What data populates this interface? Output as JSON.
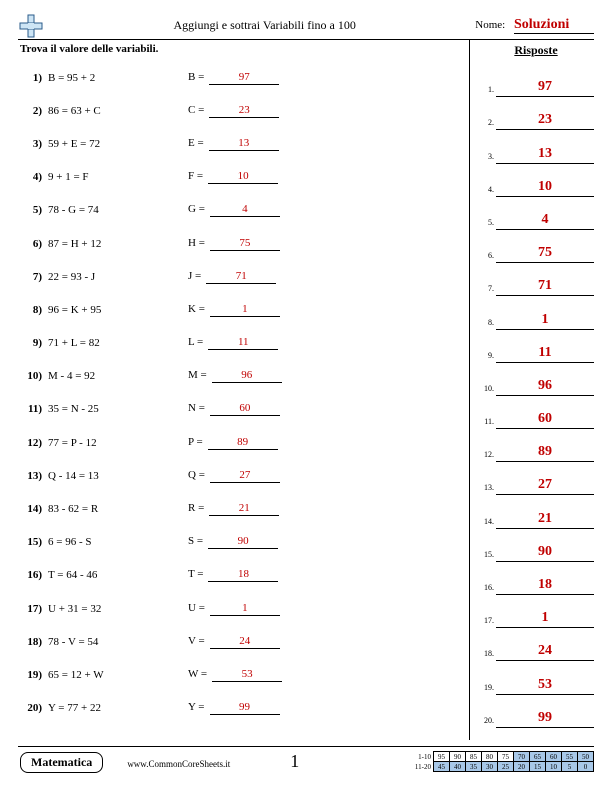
{
  "header": {
    "title": "Aggiungi e sottrai Variabili fino a 100",
    "name_label": "Nome:",
    "name_value": "Soluzioni"
  },
  "instruction": "Trova il valore delle variabili.",
  "answers_title": "Risposte",
  "problems": [
    {
      "num": "1)",
      "equation": "B = 95 + 2",
      "var": "B =",
      "answer": "97"
    },
    {
      "num": "2)",
      "equation": "86 = 63 + C",
      "var": "C =",
      "answer": "23"
    },
    {
      "num": "3)",
      "equation": "59 + E = 72",
      "var": "E =",
      "answer": "13"
    },
    {
      "num": "4)",
      "equation": "9 + 1 = F",
      "var": "F =",
      "answer": "10"
    },
    {
      "num": "5)",
      "equation": "78 - G = 74",
      "var": "G =",
      "answer": "4"
    },
    {
      "num": "6)",
      "equation": "87 = H + 12",
      "var": "H =",
      "answer": "75"
    },
    {
      "num": "7)",
      "equation": "22 = 93 - J",
      "var": "J =",
      "answer": "71"
    },
    {
      "num": "8)",
      "equation": "96 = K + 95",
      "var": "K =",
      "answer": "1"
    },
    {
      "num": "9)",
      "equation": "71 + L = 82",
      "var": "L =",
      "answer": "11"
    },
    {
      "num": "10)",
      "equation": "M - 4 = 92",
      "var": "M =",
      "answer": "96"
    },
    {
      "num": "11)",
      "equation": "35 = N - 25",
      "var": "N =",
      "answer": "60"
    },
    {
      "num": "12)",
      "equation": "77 = P - 12",
      "var": "P =",
      "answer": "89"
    },
    {
      "num": "13)",
      "equation": "Q - 14 = 13",
      "var": "Q =",
      "answer": "27"
    },
    {
      "num": "14)",
      "equation": "83 - 62 = R",
      "var": "R =",
      "answer": "21"
    },
    {
      "num": "15)",
      "equation": "6 = 96 - S",
      "var": "S =",
      "answer": "90"
    },
    {
      "num": "16)",
      "equation": "T = 64 - 46",
      "var": "T =",
      "answer": "18"
    },
    {
      "num": "17)",
      "equation": "U + 31 = 32",
      "var": "U =",
      "answer": "1"
    },
    {
      "num": "18)",
      "equation": "78 - V = 54",
      "var": "V =",
      "answer": "24"
    },
    {
      "num": "19)",
      "equation": "65 = 12 + W",
      "var": "W =",
      "answer": "53"
    },
    {
      "num": "20)",
      "equation": "Y = 77 + 22",
      "var": "Y =",
      "answer": "99"
    }
  ],
  "footer": {
    "subject": "Matematica",
    "site": "www.CommonCoreSheets.it",
    "page_number": "1",
    "score_grid": {
      "row1_label": "1-10",
      "row1": [
        "95",
        "90",
        "85",
        "80",
        "75",
        "70",
        "65",
        "60",
        "55",
        "50"
      ],
      "row2_label": "11-20",
      "row2": [
        "45",
        "40",
        "35",
        "30",
        "25",
        "20",
        "15",
        "10",
        "5",
        "0"
      ],
      "shade_start_row1": 5,
      "shade_all_row2": true
    }
  },
  "colors": {
    "answer_color": "#c00000",
    "shade_color": "#a8c8e8",
    "border_color": "#000000",
    "background": "#ffffff"
  }
}
